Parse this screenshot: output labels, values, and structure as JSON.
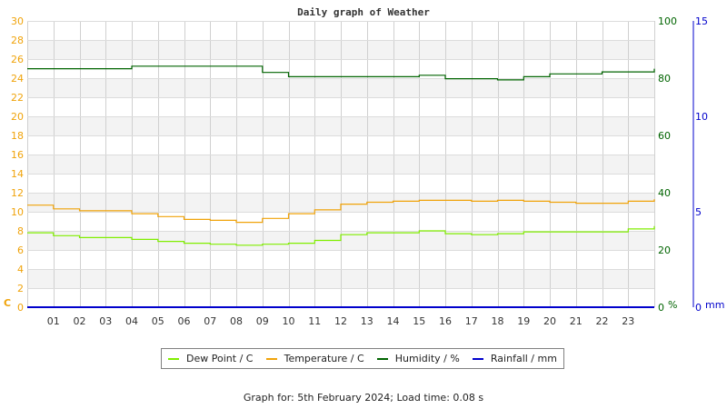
{
  "chart_data": {
    "type": "line",
    "title": "Daily graph of Weather",
    "xlabel": "",
    "x_ticks": [
      "01",
      "02",
      "03",
      "04",
      "05",
      "06",
      "07",
      "08",
      "09",
      "10",
      "11",
      "12",
      "13",
      "14",
      "15",
      "16",
      "17",
      "18",
      "19",
      "20",
      "21",
      "22",
      "23"
    ],
    "axes": {
      "left": {
        "label": "C",
        "range": [
          0,
          30
        ],
        "ticks": [
          0,
          2,
          4,
          6,
          8,
          10,
          12,
          14,
          16,
          18,
          20,
          22,
          24,
          26,
          28,
          30
        ],
        "color": "#f0a30a"
      },
      "right_humidity": {
        "label": "%",
        "range": [
          0,
          100
        ],
        "ticks": [
          0,
          20,
          40,
          60,
          80,
          100
        ],
        "color": "#006400"
      },
      "right_rainfall": {
        "label": "mm",
        "range": [
          0,
          15
        ],
        "ticks": [
          0,
          5,
          10,
          15
        ],
        "color": "#0000cc"
      }
    },
    "grid": true,
    "legend_position": "bottom",
    "x_hours": [
      0,
      1,
      2,
      3,
      4,
      5,
      6,
      7,
      8,
      9,
      10,
      11,
      12,
      13,
      14,
      15,
      16,
      17,
      18,
      19,
      20,
      21,
      22,
      23,
      24
    ],
    "series": [
      {
        "name": "Dew Point / C",
        "axis": "left",
        "color": "#80ee00",
        "values": [
          7.8,
          7.5,
          7.3,
          7.3,
          7.1,
          6.9,
          6.7,
          6.6,
          6.5,
          6.6,
          6.7,
          7.0,
          7.6,
          7.8,
          7.8,
          8.0,
          7.7,
          7.6,
          7.7,
          7.9,
          7.9,
          7.9,
          7.9,
          8.2,
          8.5
        ]
      },
      {
        "name": "Temperature / C",
        "axis": "left",
        "color": "#f0a30a",
        "values": [
          10.7,
          10.3,
          10.1,
          10.1,
          9.8,
          9.5,
          9.2,
          9.1,
          8.9,
          9.3,
          9.8,
          10.2,
          10.8,
          11.0,
          11.1,
          11.2,
          11.2,
          11.1,
          11.2,
          11.1,
          11.0,
          10.9,
          10.9,
          11.1,
          11.3
        ]
      },
      {
        "name": "Humidity / %",
        "axis": "right_humidity",
        "color": "#006400",
        "values": [
          83.3,
          83.3,
          83.3,
          83.3,
          84.2,
          84.2,
          84.2,
          84.2,
          84.2,
          82.0,
          80.5,
          80.5,
          80.5,
          80.5,
          80.5,
          81.0,
          79.8,
          79.8,
          79.4,
          80.5,
          81.5,
          81.5,
          82.2,
          82.2,
          83.3
        ]
      },
      {
        "name": "Rainfall / mm",
        "axis": "right_rainfall",
        "color": "#0000cc",
        "values": [
          0,
          0,
          0,
          0,
          0,
          0,
          0,
          0,
          0,
          0,
          0,
          0,
          0,
          0,
          0,
          0,
          0,
          0,
          0,
          0,
          0,
          0,
          0,
          0,
          0
        ]
      }
    ]
  },
  "title": "Daily graph of Weather",
  "legend": [
    {
      "label": "Dew Point / C",
      "color": "#80ee00"
    },
    {
      "label": "Temperature / C",
      "color": "#f0a30a"
    },
    {
      "label": "Humidity / %",
      "color": "#006400"
    },
    {
      "label": "Rainfall / mm",
      "color": "#0000cc"
    }
  ],
  "footer": "Graph for: 5th February 2024; Load time: 0.08 s"
}
